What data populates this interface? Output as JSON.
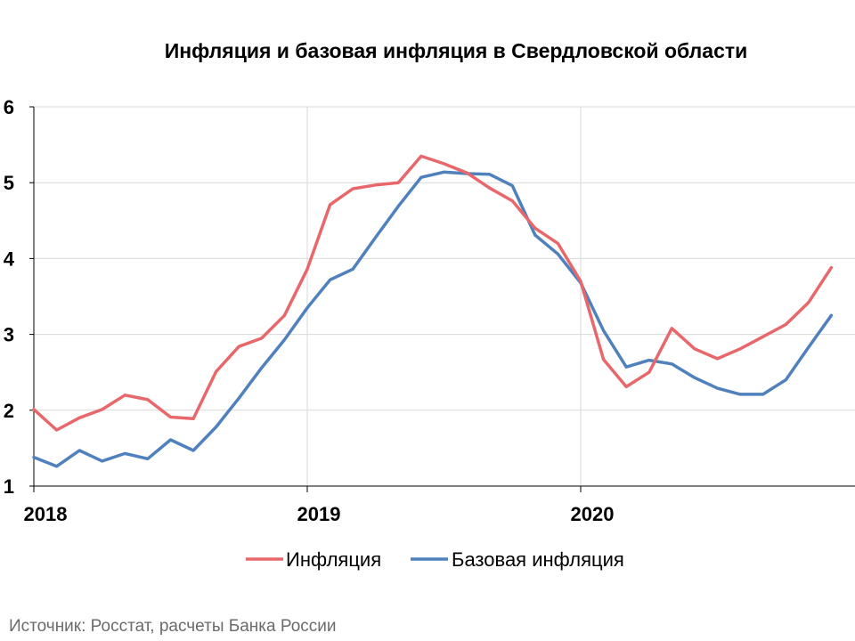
{
  "chart_data": {
    "type": "line",
    "title": "Инфляция и базовая инфляция в Свердловской области",
    "xlabel": "",
    "ylabel": "",
    "ylim": [
      1,
      6
    ],
    "yticks": [
      1,
      2,
      3,
      4,
      5,
      6
    ],
    "xtick_labels": [
      "2018",
      "2019",
      "2020"
    ],
    "grid": true,
    "legend": "bottom",
    "x": [
      "2018-01",
      "2018-02",
      "2018-03",
      "2018-04",
      "2018-05",
      "2018-06",
      "2018-07",
      "2018-08",
      "2018-09",
      "2018-10",
      "2018-11",
      "2018-12",
      "2019-01",
      "2019-02",
      "2019-03",
      "2019-04",
      "2019-05",
      "2019-06",
      "2019-07",
      "2019-08",
      "2019-09",
      "2019-10",
      "2019-11",
      "2019-12",
      "2020-01",
      "2020-02",
      "2020-03",
      "2020-04",
      "2020-05",
      "2020-06",
      "2020-07",
      "2020-08",
      "2020-09",
      "2020-10",
      "2020-11",
      "2020-12"
    ],
    "series": [
      {
        "name": "Инфляция",
        "color": "#e8676b",
        "values": [
          2.01,
          1.74,
          1.9,
          2.01,
          2.2,
          2.14,
          1.91,
          1.89,
          2.51,
          2.84,
          2.95,
          3.25,
          3.86,
          4.71,
          4.92,
          4.97,
          5.0,
          5.35,
          5.25,
          5.13,
          4.93,
          4.76,
          4.4,
          4.2,
          3.7,
          2.67,
          2.31,
          2.5,
          3.08,
          2.81,
          2.68,
          2.81,
          2.97,
          3.13,
          3.42,
          3.88
        ]
      },
      {
        "name": "Базовая инфляция",
        "color": "#4f81bd",
        "values": [
          1.38,
          1.26,
          1.47,
          1.33,
          1.43,
          1.36,
          1.61,
          1.47,
          1.78,
          2.16,
          2.56,
          2.93,
          3.35,
          3.72,
          3.86,
          4.28,
          4.69,
          5.07,
          5.14,
          5.12,
          5.11,
          4.96,
          4.31,
          4.06,
          3.68,
          3.05,
          2.57,
          2.66,
          2.61,
          2.43,
          2.29,
          2.21,
          2.21,
          2.4,
          2.83,
          3.25
        ]
      }
    ]
  },
  "source": "Источник: Росстат, расчеты Банка России"
}
